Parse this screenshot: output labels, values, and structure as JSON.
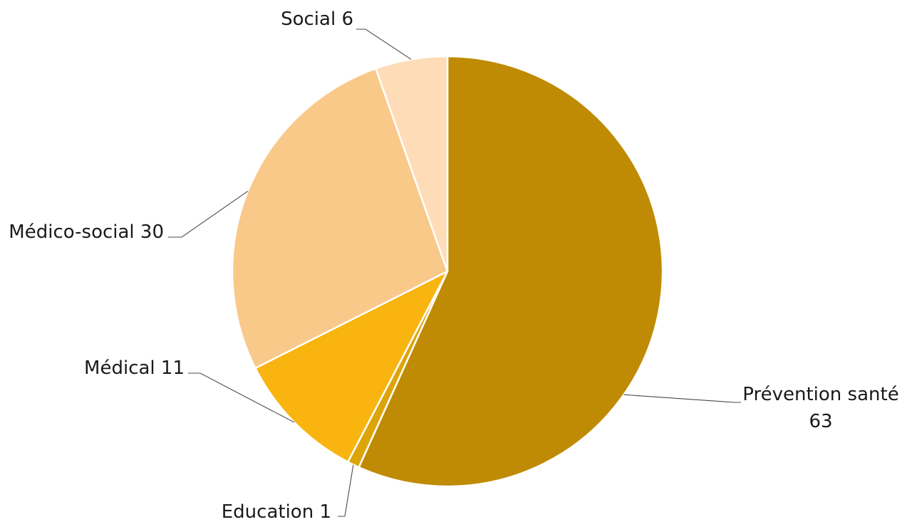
{
  "chart_data": {
    "type": "pie",
    "title": "",
    "slices": [
      {
        "name": "Prévention santé",
        "value": 63,
        "color": "#BF8B04",
        "label_lines": [
          "Prévention santé",
          "63"
        ]
      },
      {
        "name": "Education",
        "value": 1,
        "color": "#DDA40A",
        "label_lines": [
          "Education 1"
        ]
      },
      {
        "name": "Médical",
        "value": 11,
        "color": "#F9B410",
        "label_lines": [
          "Médical 11"
        ]
      },
      {
        "name": "Médico-social",
        "value": 30,
        "color": "#F9C98A",
        "label_lines": [
          "Médico-social 30"
        ]
      },
      {
        "name": "Social",
        "value": 6,
        "color": "#FDDCB7",
        "label_lines": [
          "Social 6"
        ]
      }
    ],
    "start_angle": "12 o'clock",
    "direction": "clockwise",
    "legend": "none"
  }
}
